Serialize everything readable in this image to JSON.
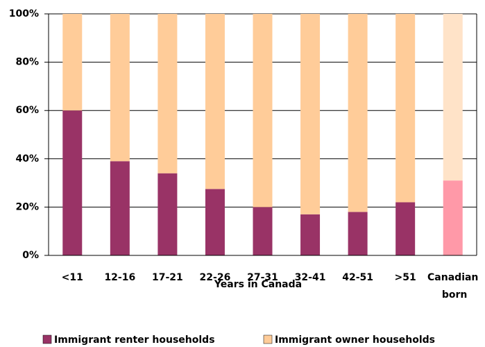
{
  "chart_data": {
    "type": "stacked_bar_percent",
    "x_label": "Years in Canada",
    "categories": [
      "<11",
      "12-16",
      "17-21",
      "22-26",
      "27-31",
      "32-41",
      "42-51",
      ">51",
      "Canadian born"
    ],
    "series": [
      {
        "name": "Immigrant renter households",
        "color": "#993366",
        "colors": [
          "#993366",
          "#993366",
          "#993366",
          "#993366",
          "#993366",
          "#993366",
          "#993366",
          "#993366",
          "#ff99a8"
        ],
        "values": [
          60,
          39,
          34,
          27.5,
          20,
          17,
          18,
          22,
          31
        ]
      },
      {
        "name": "Immigrant owner households",
        "color": "#ffcc99",
        "colors": [
          "#ffcc99",
          "#ffcc99",
          "#ffcc99",
          "#ffcc99",
          "#ffcc99",
          "#ffcc99",
          "#ffcc99",
          "#ffcc99",
          "#ffe3c8"
        ],
        "values": [
          40,
          61,
          66,
          72.5,
          80,
          83,
          82,
          78,
          69
        ]
      }
    ],
    "ylim": [
      0,
      100
    ],
    "yticks": [
      {
        "value": 0,
        "label": "0%"
      },
      {
        "value": 20,
        "label": "20%"
      },
      {
        "value": 40,
        "label": "40%"
      },
      {
        "value": 60,
        "label": "60%"
      },
      {
        "value": 80,
        "label": "80%"
      },
      {
        "value": 100,
        "label": "100%"
      }
    ],
    "grid": true,
    "legend": "bottom"
  }
}
